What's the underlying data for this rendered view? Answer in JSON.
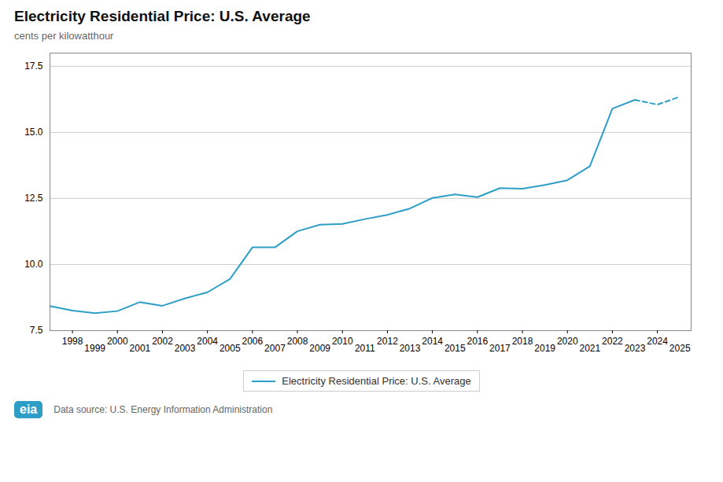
{
  "chart_data": {
    "type": "line",
    "title": "Electricity Residential Price: U.S. Average",
    "y_label": "cents per kilowatthour",
    "caption": "Data source: U.S. Energy Information Administration",
    "logo_text": "eia",
    "x": [
      1997,
      1998,
      1999,
      2000,
      2001,
      2002,
      2003,
      2004,
      2005,
      2006,
      2007,
      2008,
      2009,
      2010,
      2011,
      2012,
      2013,
      2014,
      2015,
      2016,
      2017,
      2018,
      2019,
      2020,
      2021,
      2022,
      2023,
      2024,
      2025
    ],
    "series": [
      {
        "name": "Electricity Residential Price: U.S. Average",
        "color": "#2E9EC7",
        "line_style": "solid",
        "values": [
          8.43,
          8.26,
          8.16,
          8.24,
          8.58,
          8.44,
          8.72,
          8.95,
          9.45,
          10.65,
          10.65,
          11.26,
          11.51,
          11.54,
          11.72,
          11.88,
          12.12,
          12.52,
          12.65,
          12.55,
          12.89,
          12.87,
          13.01,
          13.19,
          13.72,
          15.9,
          16.23,
          null,
          null
        ]
      },
      {
        "color": "#2E9EC7",
        "line_style": "dashed",
        "values": [
          null,
          null,
          null,
          null,
          null,
          null,
          null,
          null,
          null,
          null,
          null,
          null,
          null,
          null,
          null,
          null,
          null,
          null,
          null,
          null,
          null,
          null,
          null,
          null,
          null,
          null,
          16.23,
          16.05,
          16.35
        ]
      }
    ],
    "xlim": [
      1997,
      2025.5
    ],
    "xticks": [
      1998,
      1999,
      2000,
      2001,
      2002,
      2003,
      2004,
      2005,
      2006,
      2007,
      2008,
      2009,
      2010,
      2011,
      2012,
      2013,
      2014,
      2015,
      2016,
      2017,
      2018,
      2019,
      2020,
      2021,
      2022,
      2023,
      2024,
      2025
    ],
    "ylim": [
      7.5,
      18.0
    ],
    "yticks": [
      7.5,
      {
        "value": 10,
        "label": "10.0"
      },
      12.5,
      {
        "value": 15,
        "label": "15.0"
      },
      17.5
    ],
    "grid": true,
    "legend": "bottom"
  }
}
